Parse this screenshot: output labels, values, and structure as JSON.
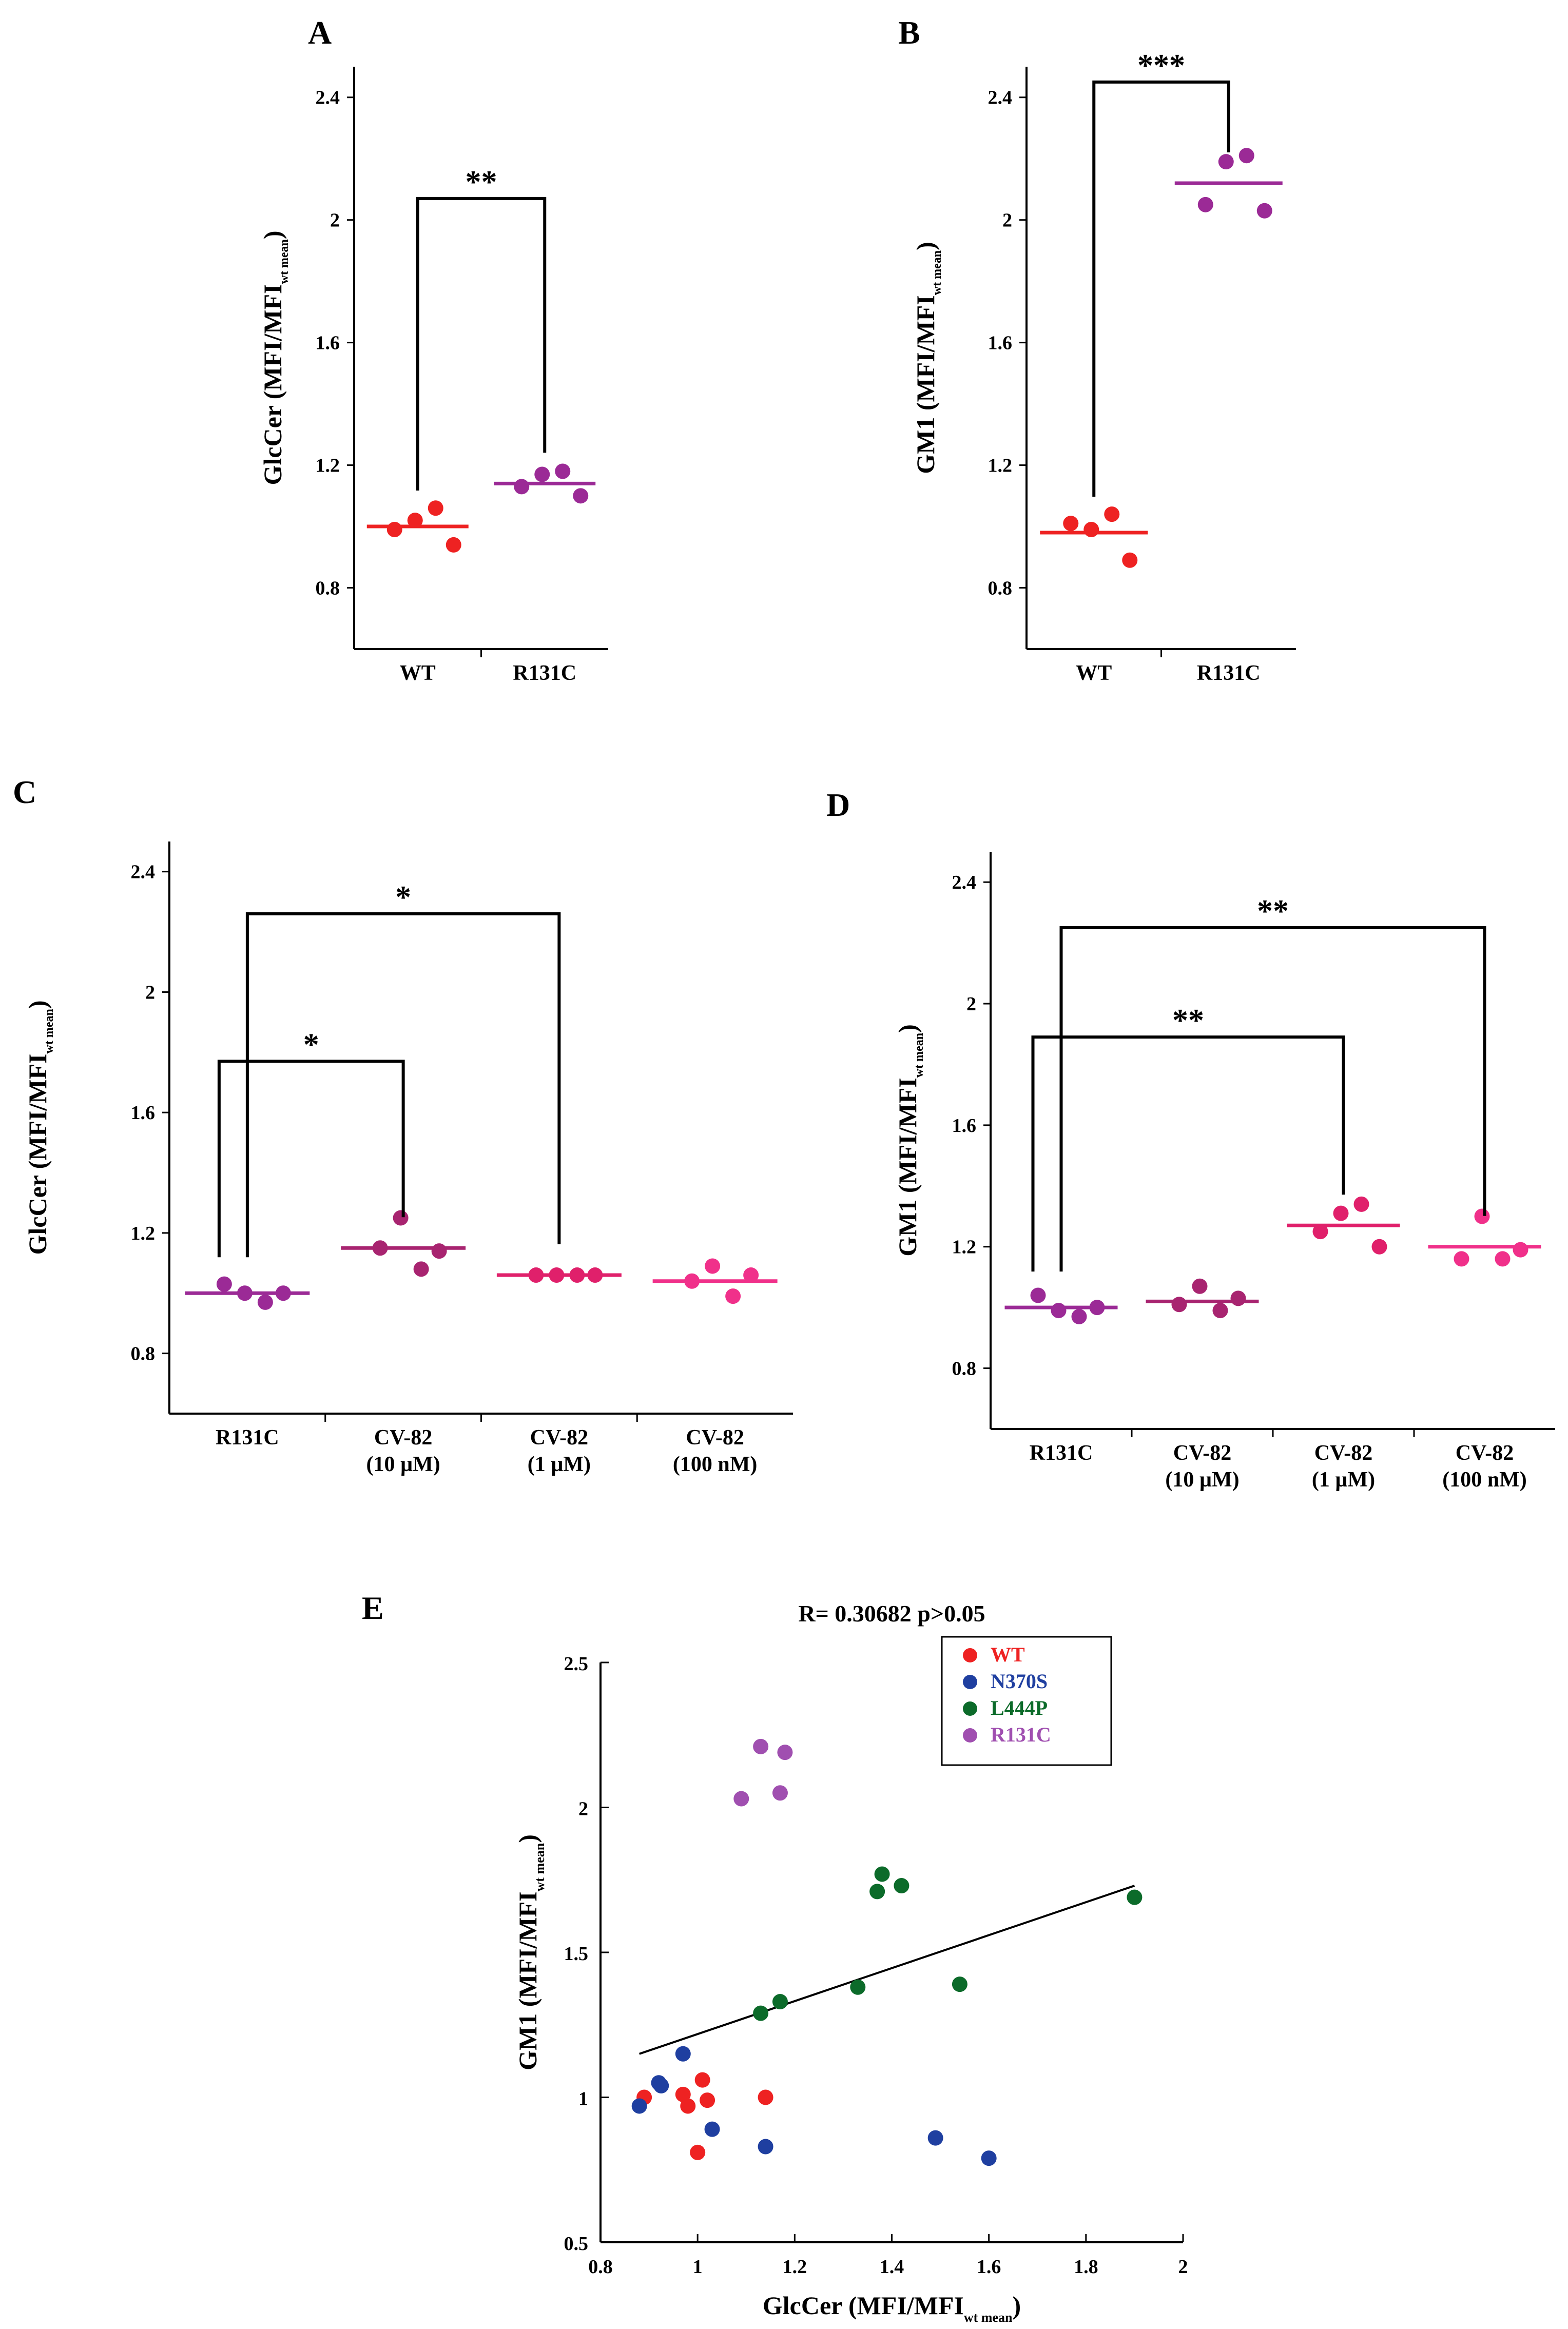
{
  "chart_data": [
    {
      "panel": "A",
      "type": "scatter",
      "categories": [
        "WT",
        "R131C"
      ],
      "ylabel": "GlcCer (MFI/MFI",
      "ylabel_sub": "wt mean",
      "ylabel_end": ")",
      "yticks": [
        "0.8",
        "1.2",
        "1.6",
        "2",
        "2.4"
      ],
      "ylim": [
        0.6,
        2.5
      ],
      "series": [
        {
          "category": "WT",
          "color": "#ee2222",
          "mean": 1.0,
          "points": [
            0.99,
            1.02,
            1.06,
            0.94
          ]
        },
        {
          "category": "R131C",
          "color": "#9b2a96",
          "mean": 1.14,
          "points": [
            1.13,
            1.17,
            1.18,
            1.1
          ]
        }
      ],
      "significance": [
        {
          "from": "WT",
          "to": "R131C",
          "label": "**",
          "level": 2.07
        }
      ]
    },
    {
      "panel": "B",
      "type": "scatter",
      "categories": [
        "WT",
        "R131C"
      ],
      "ylabel": "GM1 (MFI/MFI",
      "ylabel_sub": "wt mean",
      "ylabel_end": ")",
      "yticks": [
        "0.8",
        "1.2",
        "1.6",
        "2",
        "2.4"
      ],
      "ylim": [
        0.6,
        2.5
      ],
      "series": [
        {
          "category": "WT",
          "color": "#ee2222",
          "mean": 0.98,
          "points": [
            1.01,
            0.99,
            1.04,
            0.89
          ]
        },
        {
          "category": "R131C",
          "color": "#9b2a96",
          "mean": 2.12,
          "points": [
            2.05,
            2.19,
            2.21,
            2.03
          ]
        }
      ],
      "significance": [
        {
          "from": "WT",
          "to": "R131C",
          "label": "***",
          "level": 2.45
        }
      ]
    },
    {
      "panel": "C",
      "type": "scatter",
      "categories": [
        "R131C",
        "CV-82",
        "CV-82",
        "CV-82"
      ],
      "category_sublabels": [
        "",
        "(10 µM)",
        "(1 µM)",
        "(100 nM)"
      ],
      "ylabel": "GlcCer (MFI/MFI",
      "ylabel_sub": "wt mean",
      "ylabel_end": ")",
      "yticks": [
        "0.8",
        "1.2",
        "1.6",
        "2",
        "2.4"
      ],
      "ylim": [
        0.6,
        2.5
      ],
      "series": [
        {
          "category": "R131C",
          "color": "#9b2a96",
          "mean": 1.0,
          "points": [
            1.03,
            1.0,
            0.97,
            1.0
          ]
        },
        {
          "category": "CV-82 (10 µM)",
          "color": "#a82470",
          "mean": 1.15,
          "points": [
            1.15,
            1.25,
            1.08,
            1.14
          ]
        },
        {
          "category": "CV-82 (1 µM)",
          "color": "#e0206b",
          "mean": 1.06,
          "points": [
            1.06,
            1.06,
            1.06,
            1.06
          ]
        },
        {
          "category": "CV-82 (100 nM)",
          "color": "#f0308a",
          "mean": 1.04,
          "points": [
            1.04,
            1.09,
            0.99,
            1.06
          ]
        }
      ],
      "significance": [
        {
          "from": 0,
          "to": 1,
          "label": "*",
          "level": 1.77
        },
        {
          "from": 0,
          "to": 2,
          "label": "*",
          "level": 2.26
        }
      ]
    },
    {
      "panel": "D",
      "type": "scatter",
      "categories": [
        "R131C",
        "CV-82",
        "CV-82",
        "CV-82"
      ],
      "category_sublabels": [
        "",
        "(10 µM)",
        "(1 µM)",
        "(100 nM)"
      ],
      "ylabel": "GM1 (MFI/MFI",
      "ylabel_sub": "wt mean",
      "ylabel_end": ")",
      "yticks": [
        "0.8",
        "1.2",
        "1.6",
        "2",
        "2.4"
      ],
      "ylim": [
        0.6,
        2.5
      ],
      "series": [
        {
          "category": "R131C",
          "color": "#9b2a96",
          "mean": 1.0,
          "points": [
            1.04,
            0.99,
            0.97,
            1.0
          ]
        },
        {
          "category": "CV-82 (10 µM)",
          "color": "#a82470",
          "mean": 1.02,
          "points": [
            1.01,
            1.07,
            0.99,
            1.03
          ]
        },
        {
          "category": "CV-82 (1 µM)",
          "color": "#e0206b",
          "mean": 1.27,
          "points": [
            1.25,
            1.31,
            1.34,
            1.2
          ]
        },
        {
          "category": "CV-82 (100 nM)",
          "color": "#f0308a",
          "mean": 1.2,
          "points": [
            1.16,
            1.3,
            1.16,
            1.19
          ]
        }
      ],
      "significance": [
        {
          "from": 0,
          "to": 2,
          "label": "**",
          "level": 1.89
        },
        {
          "from": 0,
          "to": 3,
          "label": "**",
          "level": 2.25
        }
      ]
    },
    {
      "panel": "E",
      "type": "scatter",
      "title": "R= 0.30682 p>0.05",
      "xlabel": "GlcCer (MFI/MFI",
      "xlabel_sub": "wt mean",
      "xlabel_end": ")",
      "ylabel": "GM1 (MFI/MFI",
      "ylabel_sub": "wt mean",
      "ylabel_end": ")",
      "xlim": [
        0.8,
        2
      ],
      "ylim": [
        0.5,
        2.5
      ],
      "xticks": [
        "0.8",
        "1",
        "1.2",
        "1.4",
        "1.6",
        "1.8",
        "2"
      ],
      "yticks": [
        "0.5",
        "1",
        "1.5",
        "2",
        "2.5"
      ],
      "legend": {
        "position": "top-right"
      },
      "series": [
        {
          "name": "WT",
          "color": "#ee2222",
          "points": [
            [
              0.89,
              1.0
            ],
            [
              0.97,
              1.01
            ],
            [
              0.98,
              0.97
            ],
            [
              1.0,
              0.81
            ],
            [
              1.01,
              1.06
            ],
            [
              1.02,
              0.99
            ],
            [
              1.14,
              1.0
            ]
          ]
        },
        {
          "name": "N370S",
          "color": "#1f3fa0",
          "points": [
            [
              0.88,
              0.97
            ],
            [
              0.92,
              1.05
            ],
            [
              0.925,
              1.04
            ],
            [
              0.97,
              1.15
            ],
            [
              1.03,
              0.89
            ],
            [
              1.14,
              0.83
            ],
            [
              1.49,
              0.86
            ],
            [
              1.6,
              0.79
            ]
          ]
        },
        {
          "name": "L444P",
          "color": "#0c6b2a",
          "points": [
            [
              1.13,
              1.29
            ],
            [
              1.17,
              1.33
            ],
            [
              1.33,
              1.38
            ],
            [
              1.37,
              1.71
            ],
            [
              1.38,
              1.77
            ],
            [
              1.42,
              1.73
            ],
            [
              1.54,
              1.39
            ],
            [
              1.9,
              1.69
            ]
          ]
        },
        {
          "name": "R131C",
          "color": "#a04fb0",
          "points": [
            [
              1.09,
              2.03
            ],
            [
              1.13,
              2.21
            ],
            [
              1.17,
              2.05
            ],
            [
              1.18,
              2.19
            ]
          ]
        }
      ],
      "trendline": [
        [
          0.88,
          1.15
        ],
        [
          1.9,
          1.73
        ]
      ]
    }
  ]
}
